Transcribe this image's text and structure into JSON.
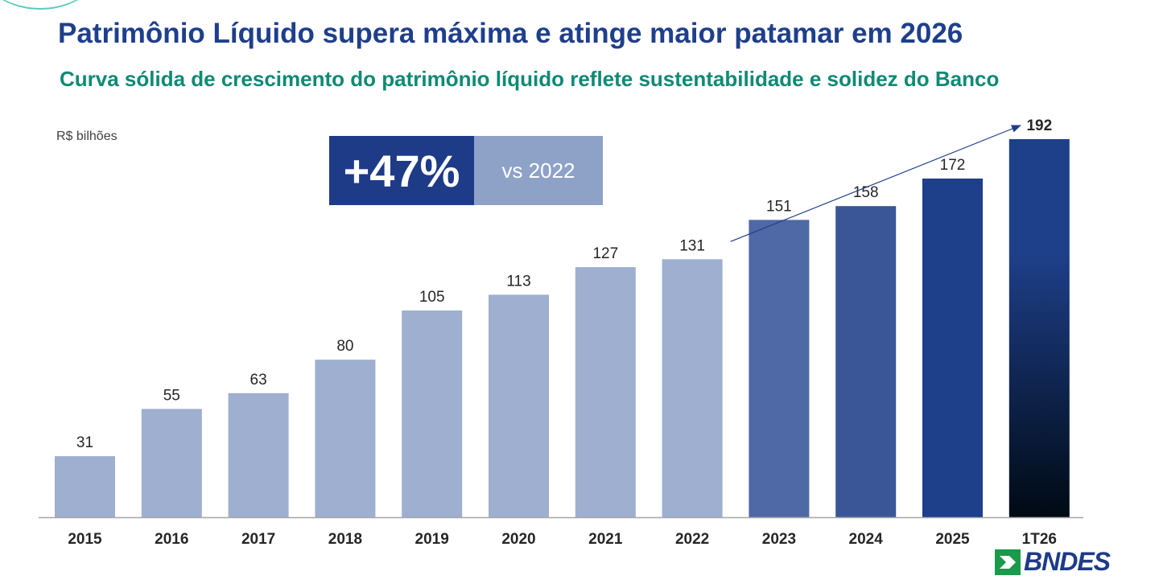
{
  "header": {
    "title": "Patrimônio Líquido supera máxima e atinge maior patamar em 2026",
    "subtitle": "Curva sólida de crescimento do patrimônio líquido reflete sustentabilidade e solidez do Banco"
  },
  "badge": {
    "value": "+47%",
    "label": "vs 2022"
  },
  "brand": {
    "name": "BNDES",
    "logo_icon": "bndes-logo-icon"
  },
  "chart_data": {
    "type": "bar",
    "unit_label": "R$ bilhões",
    "categories": [
      "2015",
      "2016",
      "2017",
      "2018",
      "2019",
      "2020",
      "2021",
      "2022",
      "2023",
      "2024",
      "2025",
      "1T26"
    ],
    "values": [
      31,
      55,
      63,
      80,
      105,
      113,
      127,
      131,
      151,
      158,
      172,
      192
    ],
    "ylim": [
      0,
      192
    ],
    "grid": false,
    "bar_colors": [
      "#9eafcf",
      "#9eafcf",
      "#9eafcf",
      "#9eafcf",
      "#9eafcf",
      "#9eafcf",
      "#9eafcf",
      "#9eafcf",
      "#4f69a6",
      "#3a5697",
      "#1e3f8a",
      "gradient"
    ],
    "gradient_colors": [
      "#1e3f8a",
      "#000a14"
    ],
    "highlight_index": 11,
    "trend_arrow": {
      "from_index": 7,
      "to_index": 11,
      "color": "#1f3f8c"
    }
  }
}
